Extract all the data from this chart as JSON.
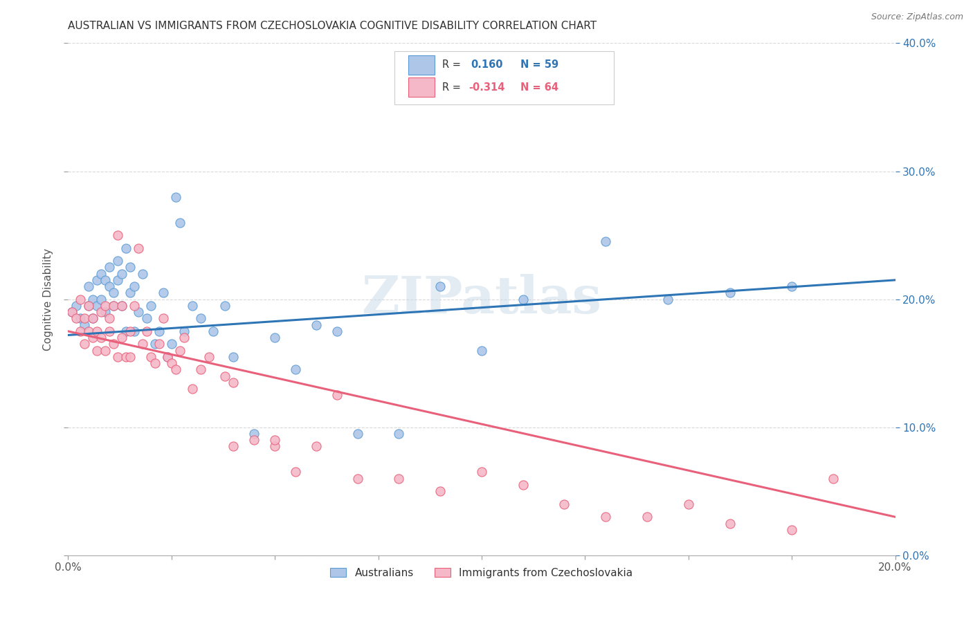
{
  "title": "AUSTRALIAN VS IMMIGRANTS FROM CZECHOSLOVAKIA COGNITIVE DISABILITY CORRELATION CHART",
  "source": "Source: ZipAtlas.com",
  "ylabel": "Cognitive Disability",
  "xmin": 0.0,
  "xmax": 0.2,
  "ymin": 0.0,
  "ymax": 0.4,
  "blue_R": 0.16,
  "blue_N": 59,
  "pink_R": -0.314,
  "pink_N": 64,
  "blue_color": "#aec6e8",
  "blue_edge_color": "#5b9bd5",
  "pink_color": "#f4b8c8",
  "pink_edge_color": "#e8607a",
  "blue_line_color": "#2e75b6",
  "pink_line_color": "#e8607a",
  "blue_line_y0": 0.172,
  "blue_line_y1": 0.215,
  "pink_line_y0": 0.175,
  "pink_line_y1": 0.03,
  "blue_scatter_x": [
    0.001,
    0.002,
    0.003,
    0.004,
    0.005,
    0.005,
    0.006,
    0.006,
    0.007,
    0.007,
    0.008,
    0.008,
    0.009,
    0.009,
    0.01,
    0.01,
    0.011,
    0.011,
    0.012,
    0.012,
    0.013,
    0.013,
    0.014,
    0.014,
    0.015,
    0.015,
    0.016,
    0.016,
    0.017,
    0.018,
    0.019,
    0.02,
    0.021,
    0.022,
    0.023,
    0.024,
    0.025,
    0.026,
    0.027,
    0.028,
    0.03,
    0.032,
    0.035,
    0.038,
    0.04,
    0.045,
    0.05,
    0.055,
    0.06,
    0.065,
    0.07,
    0.08,
    0.09,
    0.1,
    0.11,
    0.13,
    0.145,
    0.16,
    0.175
  ],
  "blue_scatter_y": [
    0.19,
    0.195,
    0.185,
    0.18,
    0.195,
    0.21,
    0.185,
    0.2,
    0.195,
    0.215,
    0.2,
    0.22,
    0.215,
    0.19,
    0.21,
    0.225,
    0.205,
    0.195,
    0.215,
    0.23,
    0.195,
    0.22,
    0.24,
    0.175,
    0.205,
    0.225,
    0.175,
    0.21,
    0.19,
    0.22,
    0.185,
    0.195,
    0.165,
    0.175,
    0.205,
    0.155,
    0.165,
    0.28,
    0.26,
    0.175,
    0.195,
    0.185,
    0.175,
    0.195,
    0.155,
    0.095,
    0.17,
    0.145,
    0.18,
    0.175,
    0.095,
    0.095,
    0.21,
    0.16,
    0.2,
    0.245,
    0.2,
    0.205,
    0.21
  ],
  "pink_scatter_x": [
    0.001,
    0.002,
    0.003,
    0.003,
    0.004,
    0.004,
    0.005,
    0.005,
    0.006,
    0.006,
    0.007,
    0.007,
    0.008,
    0.008,
    0.009,
    0.009,
    0.01,
    0.01,
    0.011,
    0.011,
    0.012,
    0.012,
    0.013,
    0.013,
    0.014,
    0.015,
    0.015,
    0.016,
    0.017,
    0.018,
    0.019,
    0.02,
    0.021,
    0.022,
    0.023,
    0.024,
    0.025,
    0.026,
    0.027,
    0.028,
    0.03,
    0.032,
    0.034,
    0.038,
    0.04,
    0.045,
    0.05,
    0.055,
    0.06,
    0.065,
    0.07,
    0.08,
    0.09,
    0.1,
    0.11,
    0.12,
    0.13,
    0.14,
    0.15,
    0.16,
    0.175,
    0.185,
    0.05,
    0.04
  ],
  "pink_scatter_y": [
    0.19,
    0.185,
    0.2,
    0.175,
    0.185,
    0.165,
    0.175,
    0.195,
    0.17,
    0.185,
    0.16,
    0.175,
    0.17,
    0.19,
    0.195,
    0.16,
    0.175,
    0.185,
    0.165,
    0.195,
    0.25,
    0.155,
    0.17,
    0.195,
    0.155,
    0.155,
    0.175,
    0.195,
    0.24,
    0.165,
    0.175,
    0.155,
    0.15,
    0.165,
    0.185,
    0.155,
    0.15,
    0.145,
    0.16,
    0.17,
    0.13,
    0.145,
    0.155,
    0.14,
    0.135,
    0.09,
    0.085,
    0.065,
    0.085,
    0.125,
    0.06,
    0.06,
    0.05,
    0.065,
    0.055,
    0.04,
    0.03,
    0.03,
    0.04,
    0.025,
    0.02,
    0.06,
    0.09,
    0.085
  ],
  "legend_labels": [
    "Australians",
    "Immigrants from Czechoslovakia"
  ],
  "background_color": "#ffffff",
  "grid_color": "#d9d9d9"
}
